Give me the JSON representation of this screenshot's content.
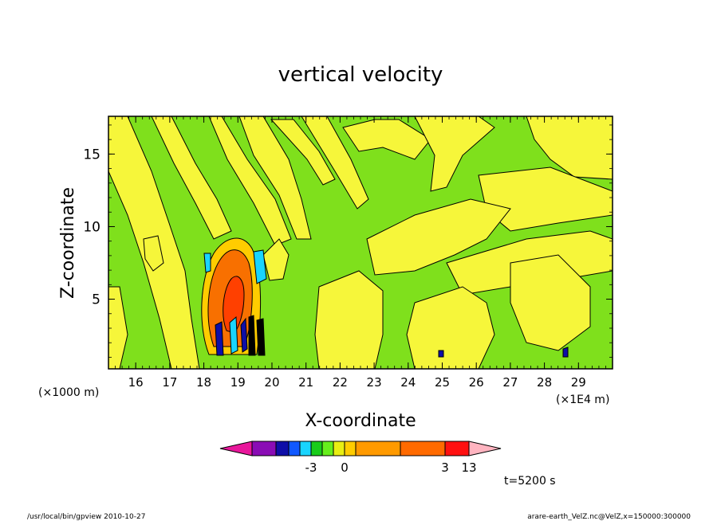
{
  "chart_data": {
    "type": "heatmap",
    "title": "vertical velocity",
    "xlabel": "X-coordinate",
    "ylabel": "Z-coordinate",
    "x_unit": "(×1E4 m)",
    "y_unit": "(×1000 m)",
    "xlim": [
      15.2,
      30.0
    ],
    "ylim": [
      0.2,
      17.6
    ],
    "x_ticks": [
      16,
      17,
      18,
      19,
      20,
      21,
      22,
      23,
      24,
      25,
      26,
      27,
      28,
      29
    ],
    "y_ticks": [
      5,
      10,
      15
    ],
    "colorbar": {
      "levels": [
        -6,
        -5,
        -4,
        -3,
        -2,
        -1,
        0,
        1,
        2,
        3,
        7,
        11,
        13
      ],
      "labels": [
        {
          "value": -3,
          "text": "-3"
        },
        {
          "value": 0,
          "text": "0"
        },
        {
          "value": 3,
          "text": "3"
        },
        {
          "value": 13,
          "text": "13"
        }
      ],
      "colors": [
        "#e8179b",
        "#8a0cb5",
        "#0e0ea8",
        "#1058ff",
        "#19d4ff",
        "#19cc1a",
        "#66ee1c",
        "#e8ee12",
        "#ffcc00",
        "#ff9a00",
        "#ff6a00",
        "#ff1010",
        "#ff7f7f",
        "#ffb4c0"
      ]
    },
    "fields": {
      "background_color": "#7fe01c",
      "positive_color": "#f6f63a",
      "strong_up_color": "#f87000",
      "strong_down_color": "#0e0ea8"
    },
    "annotation": "t=5200 s"
  },
  "footer": {
    "left": "/usr/local/bin/gpview   2010-10-27",
    "right": "arare-earth_VelZ.nc@VelZ,x=150000:300000"
  }
}
